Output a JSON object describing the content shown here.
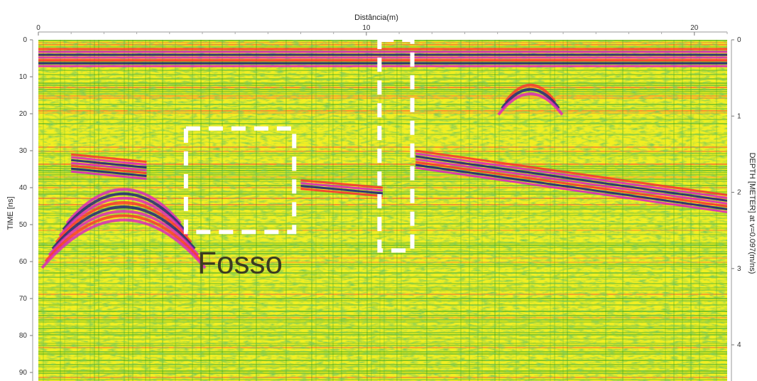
{
  "chart_data": {
    "type": "heatmap",
    "title": "",
    "x_axis": {
      "label": "Distância(m)",
      "range": [
        0,
        21
      ],
      "ticks": [
        0,
        10,
        20
      ]
    },
    "y_axis_left": {
      "label": "TIME [ns]",
      "range": [
        0,
        92
      ],
      "ticks": [
        0,
        10,
        20,
        30,
        40,
        50,
        60,
        70,
        80,
        90
      ]
    },
    "y_axis_right": {
      "label": "DEPTH [METER] at v=0.097(m/ns)",
      "range": [
        0,
        4.46
      ],
      "ticks": [
        0,
        1,
        2,
        3,
        4
      ]
    },
    "colormap": [
      "#1a1a80",
      "#e020c0",
      "#ff3030",
      "#f0f020",
      "#20a020"
    ],
    "annotations": [
      {
        "text": "Fosso",
        "box_x": [
          4.5,
          7.8
        ],
        "box_y": [
          24,
          52
        ],
        "color": "#ffffff",
        "style": "dashed"
      },
      {
        "text": "",
        "box_x": [
          10.4,
          11.4
        ],
        "box_y": [
          0,
          57
        ],
        "color": "#ffffff",
        "style": "dashed"
      }
    ],
    "reflectors": [
      {
        "name": "surface",
        "x": [
          0,
          21
        ],
        "y": [
          2.5,
          2.5
        ],
        "strength": "strong"
      },
      {
        "name": "hyperbola-left",
        "x_center": 2.6,
        "y_apex": 40,
        "strength": "strong"
      },
      {
        "name": "layer-left",
        "x": [
          1.0,
          3.3
        ],
        "y": [
          31,
          33
        ],
        "strength": "strong"
      },
      {
        "name": "layer-mid",
        "x": [
          8.0,
          10.5
        ],
        "y": [
          38,
          40
        ],
        "strength": "medium"
      },
      {
        "name": "layer-right",
        "x": [
          11.5,
          21
        ],
        "y": [
          30,
          42
        ],
        "strength": "strong"
      },
      {
        "name": "hyperbola-right",
        "x_center": 15.0,
        "y_apex": 12,
        "strength": "medium"
      }
    ]
  }
}
